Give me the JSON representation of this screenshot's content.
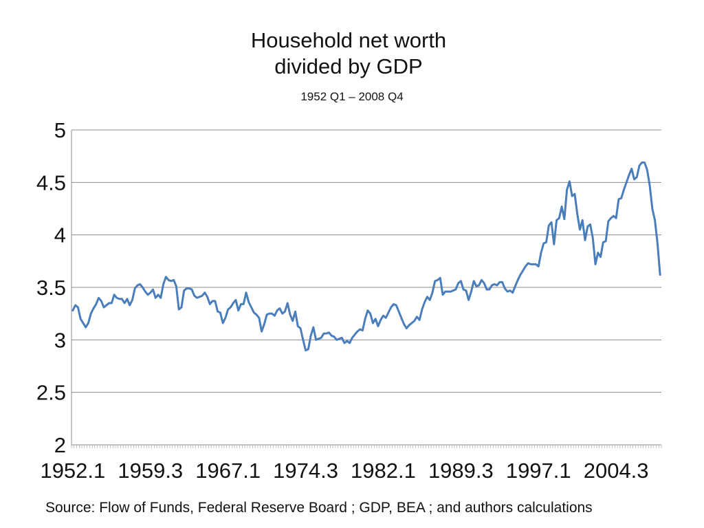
{
  "chart_data": {
    "type": "line",
    "title_line1": "Household net worth",
    "title_line2": "divided by GDP",
    "subtitle": "1952 Q1 – 2008 Q4",
    "xlabel": "",
    "ylabel": "",
    "ylim": [
      2,
      5
    ],
    "yticks": [
      "2",
      "2.5",
      "3",
      "3.5",
      "4",
      "4.5",
      "5"
    ],
    "xtick_labels": [
      "1952.1",
      "1959.3",
      "1967.1",
      "1974.3",
      "1982.1",
      "1989.3",
      "1997.1",
      "2004.3"
    ],
    "grid": true,
    "legend": "none",
    "color": "#4a7ebb",
    "series": [
      {
        "x_start": "1952.1",
        "x_end": "2008.4",
        "values": [
          3.28,
          3.33,
          3.31,
          3.2,
          3.16,
          3.12,
          3.16,
          3.25,
          3.3,
          3.34,
          3.4,
          3.37,
          3.31,
          3.33,
          3.35,
          3.35,
          3.43,
          3.4,
          3.39,
          3.39,
          3.35,
          3.39,
          3.33,
          3.38,
          3.49,
          3.52,
          3.53,
          3.5,
          3.46,
          3.43,
          3.45,
          3.48,
          3.4,
          3.43,
          3.4,
          3.53,
          3.6,
          3.57,
          3.56,
          3.57,
          3.51,
          3.29,
          3.31,
          3.47,
          3.49,
          3.49,
          3.48,
          3.42,
          3.4,
          3.41,
          3.42,
          3.45,
          3.41,
          3.34,
          3.37,
          3.37,
          3.27,
          3.26,
          3.16,
          3.21,
          3.29,
          3.31,
          3.35,
          3.38,
          3.28,
          3.34,
          3.34,
          3.45,
          3.36,
          3.31,
          3.26,
          3.24,
          3.21,
          3.08,
          3.15,
          3.24,
          3.25,
          3.25,
          3.23,
          3.28,
          3.3,
          3.25,
          3.27,
          3.35,
          3.24,
          3.18,
          3.27,
          3.13,
          3.11,
          3.0,
          2.9,
          2.91,
          3.04,
          3.12,
          3.0,
          3.01,
          3.02,
          3.06,
          3.06,
          3.07,
          3.04,
          3.03,
          3.0,
          3.01,
          3.02,
          2.97,
          2.99,
          2.97,
          3.02,
          3.05,
          3.08,
          3.1,
          3.09,
          3.2,
          3.28,
          3.25,
          3.16,
          3.2,
          3.13,
          3.19,
          3.23,
          3.21,
          3.26,
          3.31,
          3.34,
          3.33,
          3.27,
          3.21,
          3.15,
          3.11,
          3.14,
          3.16,
          3.18,
          3.22,
          3.19,
          3.29,
          3.36,
          3.41,
          3.38,
          3.45,
          3.56,
          3.57,
          3.59,
          3.43,
          3.46,
          3.46,
          3.46,
          3.47,
          3.48,
          3.54,
          3.56,
          3.48,
          3.47,
          3.38,
          3.46,
          3.56,
          3.51,
          3.52,
          3.57,
          3.54,
          3.48,
          3.48,
          3.52,
          3.53,
          3.52,
          3.55,
          3.55,
          3.49,
          3.46,
          3.47,
          3.45,
          3.51,
          3.57,
          3.62,
          3.66,
          3.7,
          3.73,
          3.72,
          3.72,
          3.72,
          3.7,
          3.83,
          3.92,
          3.93,
          4.09,
          4.12,
          3.91,
          4.14,
          4.16,
          4.27,
          4.15,
          4.43,
          4.51,
          4.37,
          4.39,
          4.2,
          4.05,
          4.14,
          3.95,
          4.08,
          4.1,
          3.97,
          3.72,
          3.83,
          3.79,
          3.93,
          3.94,
          4.13,
          4.16,
          4.18,
          4.16,
          4.34,
          4.35,
          4.43,
          4.5,
          4.57,
          4.63,
          4.53,
          4.55,
          4.66,
          4.69,
          4.69,
          4.62,
          4.47,
          4.25,
          4.14,
          3.92,
          3.62
        ]
      }
    ]
  },
  "source_note": "Source: Flow of Funds, Federal Reserve Board ; GDP, BEA ; and authors calculations"
}
